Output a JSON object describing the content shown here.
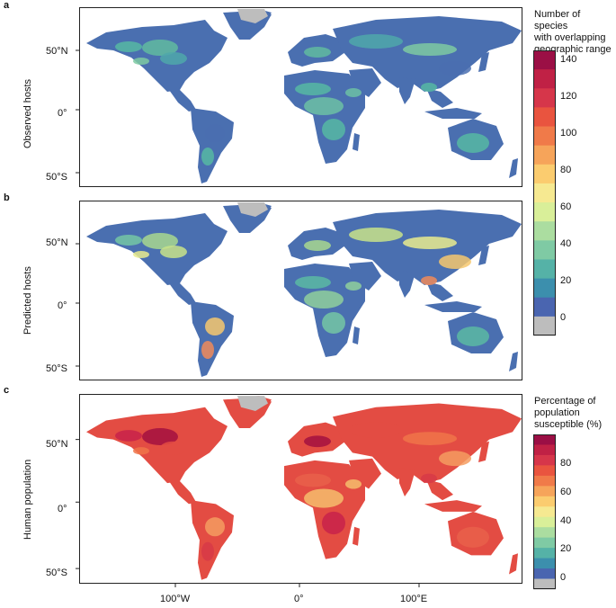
{
  "panels": [
    {
      "id": "a",
      "letter": "a",
      "ylabel": "Observed hosts",
      "lat_ticks": [
        "50°N",
        "0°",
        "50°S"
      ],
      "base": "#4a6fb0",
      "pal": [
        "#56b9a3",
        "#60bba0",
        "#4fa8aa",
        "#7ecaa2",
        "#4a6fb0",
        "#56b9a3",
        "#56b9a3",
        "#6cc1a4"
      ]
    },
    {
      "id": "b",
      "letter": "b",
      "ylabel": "Predicted hosts",
      "lat_ticks": [
        "50°N",
        "0°",
        "50°S"
      ],
      "base": "#4a6fb0",
      "pal": [
        "#74c7a4",
        "#a8d88f",
        "#c8e38a",
        "#e9ec8e",
        "#f6c86f",
        "#f08b5a",
        "#5bbaa3",
        "#8fd09c"
      ]
    },
    {
      "id": "c",
      "letter": "c",
      "ylabel": "Human population",
      "lat_ticks": [
        "50°N",
        "0°",
        "50°S"
      ],
      "lon_ticks": [
        "100°W",
        "0°",
        "100°E"
      ],
      "base": "#e34c43",
      "pal": [
        "#c8224a",
        "#a3103f",
        "#e34c43",
        "#f07449",
        "#f59c60",
        "#d73a46",
        "#e9604a",
        "#f6bd6c"
      ]
    }
  ],
  "legend_top": {
    "title_lines": [
      "Number of species",
      "with overlapping",
      "geographic range"
    ],
    "ticks": [
      "140",
      "120",
      "100",
      "80",
      "60",
      "40",
      "20",
      "0"
    ],
    "colors": [
      "#9b0f45",
      "#c02145",
      "#d6364a",
      "#e9543f",
      "#f07a49",
      "#f6a45a",
      "#fbcc6f",
      "#f6e991",
      "#d9ef99",
      "#abdda0",
      "#7fcaa4",
      "#55b2a7",
      "#3c8fad",
      "#4a65b0",
      "#bdbdbd"
    ]
  },
  "legend_bottom": {
    "title_lines": [
      "Percentage of",
      "population",
      "susceptible (%)"
    ],
    "ticks": [
      "80",
      "60",
      "40",
      "20",
      "0"
    ],
    "colors": [
      "#9b0f45",
      "#c02145",
      "#d6364a",
      "#e9543f",
      "#f07a49",
      "#f6a45a",
      "#fbcc6f",
      "#f6e991",
      "#d9ef99",
      "#abdda0",
      "#7fcaa4",
      "#55b2a7",
      "#3c8fad",
      "#4a65b0",
      "#bdbdbd"
    ]
  }
}
